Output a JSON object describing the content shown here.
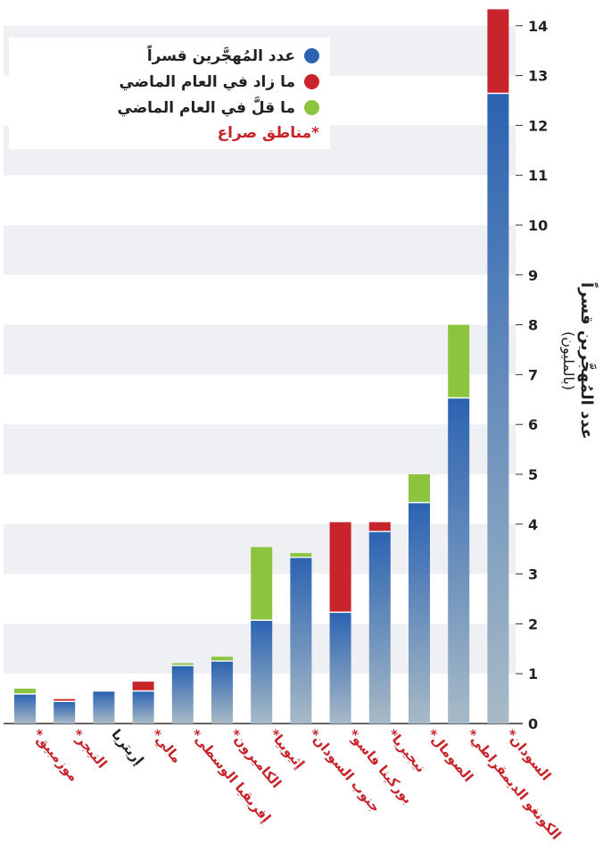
{
  "chart_data": {
    "type": "bar",
    "stacked": true,
    "categories": [
      "موزمبيق",
      "النيجر",
      "إريتريا",
      "مالي",
      "إفريقيا الوسطى",
      "الكاميرون",
      "إثيوبيا",
      "جنوب السودان",
      "بوركينا فاسو",
      "نيجيريا",
      "الصومال",
      "الكونغو الديمقراطي",
      "السودان"
    ],
    "conflict_zone": [
      true,
      true,
      false,
      true,
      true,
      true,
      true,
      true,
      true,
      true,
      true,
      true,
      true
    ],
    "series": [
      {
        "name": "عدد المُهجَّرين قسراً",
        "values": [
          0.58,
          0.43,
          0.64,
          0.64,
          1.15,
          1.24,
          2.06,
          3.32,
          2.22,
          3.84,
          4.42,
          6.52,
          12.63
        ]
      },
      {
        "name": "ما زاد في العام الماضي",
        "values": [
          0,
          0.06,
          0,
          0.2,
          0,
          0,
          0,
          0,
          1.82,
          0.2,
          0,
          0,
          1.7
        ]
      },
      {
        "name": "ما قلَّ في العام الماضي",
        "values": [
          0.12,
          0,
          0,
          0,
          0.06,
          0.1,
          1.48,
          0.1,
          0,
          0,
          0.58,
          1.48,
          0
        ]
      }
    ],
    "note": "*مناطق صراع",
    "ylabel": "عدد المُهجَّرين قسراً",
    "yunit": "(بالمليون)",
    "ylim": [
      0,
      14.3
    ],
    "yticks": [
      0,
      1,
      2,
      3,
      4,
      5,
      6,
      7,
      8,
      9,
      10,
      11,
      12,
      13,
      14
    ],
    "grid": true,
    "legend_position": "top-left"
  },
  "colors": {
    "base_top": "#2b63b2",
    "base_bottom": "#a8bac6",
    "increase": "#c8242b",
    "decrease": "#8cc43f",
    "conflict_label": "#c8242b",
    "label": "#222222",
    "band": "#eef0f3"
  }
}
